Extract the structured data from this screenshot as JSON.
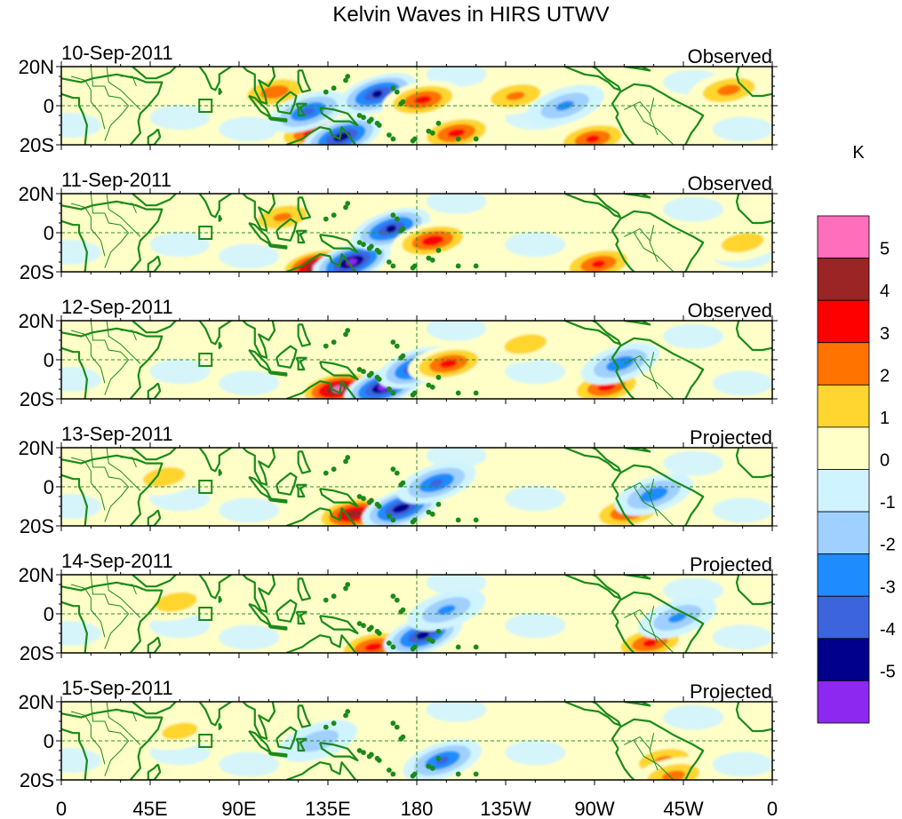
{
  "title": "Kelvin Waves in HIRS UTWV",
  "panels": [
    {
      "date": "10-Sep-2011",
      "status": "Observed"
    },
    {
      "date": "11-Sep-2011",
      "status": "Observed"
    },
    {
      "date": "12-Sep-2011",
      "status": "Observed"
    },
    {
      "date": "13-Sep-2011",
      "status": "Projected"
    },
    {
      "date": "14-Sep-2011",
      "status": "Projected"
    },
    {
      "date": "15-Sep-2011",
      "status": "Projected"
    }
  ],
  "lat_labels": [
    "20N",
    "0",
    "20S"
  ],
  "lon_labels": [
    "0",
    "45E",
    "90E",
    "135E",
    "180",
    "135W",
    "90W",
    "45W",
    "0"
  ],
  "colorbar": {
    "unit": "K",
    "levels": [
      "5",
      "4",
      "3",
      "2",
      "1",
      "0",
      "-1",
      "-2",
      "-3",
      "-4",
      "-5"
    ],
    "colors": [
      "#ff6ebb",
      "#9b2424",
      "#ff0000",
      "#ff7300",
      "#ffd52f",
      "#ffffc8",
      "#d0f4ff",
      "#a0d0ff",
      "#1e8cff",
      "#3c64dc",
      "#00008c",
      "#8c28f0"
    ]
  },
  "chart_data": {
    "type": "heatmap",
    "title": "Kelvin Waves in HIRS UTWV",
    "unit": "K",
    "x_range_degrees_east": [
      0,
      360
    ],
    "y_range_degrees_north": [
      -20,
      20
    ],
    "color_levels": [
      -5,
      -4,
      -3,
      -2,
      -1,
      0,
      1,
      2,
      3,
      4,
      5
    ],
    "panels": [
      {
        "date": "10-Sep-2011",
        "status": "Observed",
        "anomalies": [
          {
            "lon": 108,
            "lat": 7,
            "value": 2.5
          },
          {
            "lon": 128,
            "lat": -14,
            "value": 3.5
          },
          {
            "lon": 142,
            "lat": -16,
            "value": -4.5
          },
          {
            "lon": 125,
            "lat": -3,
            "value": -3
          },
          {
            "lon": 160,
            "lat": 6,
            "value": -4
          },
          {
            "lon": 183,
            "lat": 3,
            "value": 3.2
          },
          {
            "lon": 200,
            "lat": -14,
            "value": 3.2
          },
          {
            "lon": 230,
            "lat": 5,
            "value": 2
          },
          {
            "lon": 269,
            "lat": -17,
            "value": 3
          },
          {
            "lon": 255,
            "lat": 0,
            "value": -2
          },
          {
            "lon": 338,
            "lat": 8,
            "value": 2.2
          }
        ]
      },
      {
        "date": "11-Sep-2011",
        "status": "Observed",
        "anomalies": [
          {
            "lon": 130,
            "lat": -17,
            "value": 5.3
          },
          {
            "lon": 147,
            "lat": -15,
            "value": -5.2
          },
          {
            "lon": 167,
            "lat": 2,
            "value": -4
          },
          {
            "lon": 188,
            "lat": -4,
            "value": 3.5
          },
          {
            "lon": 272,
            "lat": -16,
            "value": 3
          },
          {
            "lon": 112,
            "lat": 8,
            "value": 2
          },
          {
            "lon": 345,
            "lat": -5,
            "value": 1.5
          }
        ]
      },
      {
        "date": "12-Sep-2011",
        "status": "Observed",
        "anomalies": [
          {
            "lon": 140,
            "lat": -15,
            "value": 5.2
          },
          {
            "lon": 163,
            "lat": -14,
            "value": -5
          },
          {
            "lon": 180,
            "lat": -4,
            "value": -4
          },
          {
            "lon": 196,
            "lat": -2,
            "value": 3.2
          },
          {
            "lon": 276,
            "lat": -14,
            "value": 3.2
          },
          {
            "lon": 283,
            "lat": -2,
            "value": -2.5
          },
          {
            "lon": 235,
            "lat": 8,
            "value": 1.5
          }
        ]
      },
      {
        "date": "13-Sep-2011",
        "status": "Projected",
        "anomalies": [
          {
            "lon": 148,
            "lat": -14,
            "value": 4.5
          },
          {
            "lon": 172,
            "lat": -11,
            "value": -4.5
          },
          {
            "lon": 190,
            "lat": 2,
            "value": -3
          },
          {
            "lon": 287,
            "lat": -13,
            "value": 3
          },
          {
            "lon": 300,
            "lat": -4,
            "value": -2.5
          },
          {
            "lon": 52,
            "lat": 5,
            "value": 1.5
          }
        ]
      },
      {
        "date": "14-Sep-2011",
        "status": "Projected",
        "anomalies": [
          {
            "lon": 158,
            "lat": -17,
            "value": 3.2
          },
          {
            "lon": 183,
            "lat": -11,
            "value": -4.2
          },
          {
            "lon": 195,
            "lat": 2,
            "value": -2
          },
          {
            "lon": 298,
            "lat": -15,
            "value": 3
          },
          {
            "lon": 312,
            "lat": -2,
            "value": -2
          },
          {
            "lon": 58,
            "lat": 6,
            "value": 1.5
          }
        ]
      },
      {
        "date": "15-Sep-2011",
        "status": "Projected",
        "anomalies": [
          {
            "lon": 193,
            "lat": -10,
            "value": -3
          },
          {
            "lon": 305,
            "lat": -10,
            "value": 2
          },
          {
            "lon": 310,
            "lat": -18,
            "value": 2.2
          },
          {
            "lon": 130,
            "lat": 0,
            "value": -1.5
          },
          {
            "lon": 60,
            "lat": 5,
            "value": 1.2
          }
        ]
      }
    ]
  }
}
